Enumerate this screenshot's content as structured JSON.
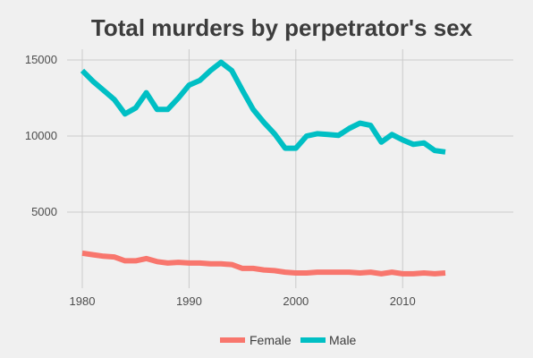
{
  "chart_data": {
    "type": "line",
    "title": "Total murders by perpetrator's sex",
    "xlabel": "",
    "ylabel": "",
    "xlim": [
      1980,
      2014
    ],
    "ylim": [
      0,
      15000
    ],
    "x_ticks": [
      1980,
      1990,
      2000,
      2010
    ],
    "y_ticks": [
      5000,
      10000,
      15000
    ],
    "grid": true,
    "legend_position": "bottom",
    "x": [
      1980,
      1981,
      1982,
      1983,
      1984,
      1985,
      1986,
      1987,
      1988,
      1989,
      1990,
      1991,
      1992,
      1993,
      1994,
      1995,
      1996,
      1997,
      1998,
      1999,
      2000,
      2001,
      2002,
      2003,
      2004,
      2005,
      2006,
      2007,
      2008,
      2009,
      2010,
      2011,
      2012,
      2013,
      2014
    ],
    "series": [
      {
        "name": "Female",
        "color": "#f8766d",
        "values": [
          2300,
          2200,
          2100,
          2050,
          1800,
          1800,
          1950,
          1750,
          1650,
          1700,
          1650,
          1650,
          1600,
          1600,
          1550,
          1300,
          1300,
          1200,
          1150,
          1050,
          1000,
          1000,
          1050,
          1050,
          1050,
          1050,
          1000,
          1050,
          950,
          1050,
          950,
          950,
          1000,
          950,
          1000
        ]
      },
      {
        "name": "Male",
        "color": "#00bfc4",
        "values": [
          14300,
          13600,
          13000,
          12400,
          11450,
          11850,
          12850,
          11750,
          11750,
          12500,
          13350,
          13650,
          14300,
          14850,
          14300,
          13000,
          11750,
          10900,
          10150,
          9200,
          9200,
          10000,
          10150,
          10100,
          10050,
          10500,
          10850,
          10700,
          9600,
          10100,
          9750,
          9450,
          9550,
          9050,
          8950
        ]
      }
    ]
  }
}
